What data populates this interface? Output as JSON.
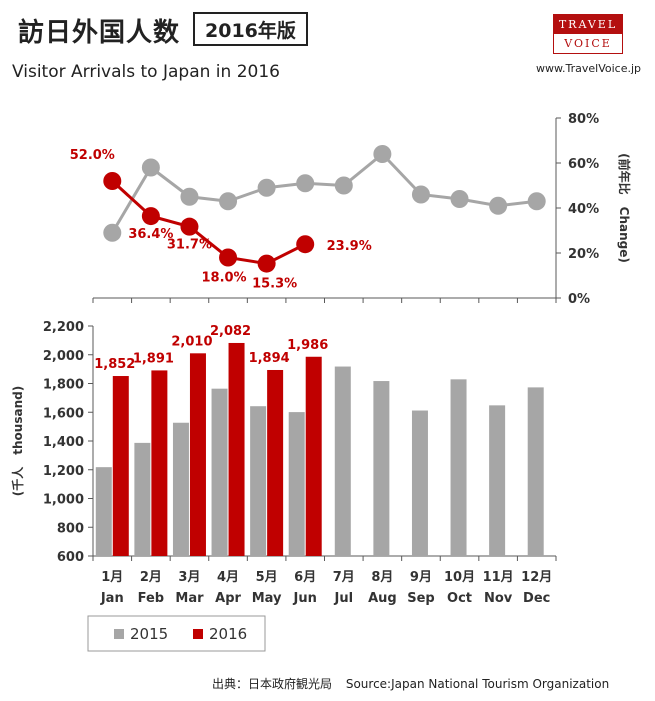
{
  "header": {
    "title_jp": "訪日外国人数",
    "edition": "2016年版",
    "title_en": "Visitor Arrivals to Japan in 2016",
    "logo_top": "TRAVEL",
    "logo_bottom": "VOICE",
    "website": "www.TravelVoice.jp"
  },
  "footer": {
    "source_jp": "出典：日本政府観光局",
    "source_en": "Source:Japan  National Tourism  Organization"
  },
  "colors": {
    "series_2015": "#a6a6a6",
    "series_2016": "#c00000",
    "axis": "#595959"
  },
  "chart_data": [
    {
      "type": "line",
      "ylabel": "(前年比　Change)",
      "ylim": [
        0,
        80
      ],
      "yticks": [
        "0%",
        "20%",
        "40%",
        "60%",
        "80%"
      ],
      "series": [
        {
          "name": "2015",
          "values": [
            29,
            58,
            45,
            43,
            49,
            51,
            50,
            64,
            46,
            44,
            41,
            43
          ]
        },
        {
          "name": "2016",
          "values": [
            52.0,
            36.4,
            31.7,
            18.0,
            15.3,
            23.9
          ],
          "labels": [
            "52.0%",
            "36.4%",
            "31.7%",
            "18.0%",
            "15.3%",
            "23.9%"
          ]
        }
      ]
    },
    {
      "type": "bar",
      "ylabel": "(千人　thousand)",
      "ylim": [
        600,
        2200
      ],
      "yticks": [
        "600",
        "800",
        "1,000",
        "1,200",
        "1,400",
        "1,600",
        "1,800",
        "2,000",
        "2,200"
      ],
      "categories_jp": [
        "1月",
        "2月",
        "3月",
        "4月",
        "5月",
        "6月",
        "7月",
        "8月",
        "9月",
        "10月",
        "11月",
        "12月"
      ],
      "categories_en": [
        "Jan",
        "Feb",
        "Mar",
        "Apr",
        "May",
        "Jun",
        "Jul",
        "Aug",
        "Sep",
        "Oct",
        "Nov",
        "Dec"
      ],
      "series": [
        {
          "name": "2015",
          "values": [
            1218,
            1387,
            1527,
            1764,
            1642,
            1601,
            1918,
            1817,
            1612,
            1829,
            1648,
            1773
          ]
        },
        {
          "name": "2016",
          "values": [
            1852,
            1891,
            2010,
            2082,
            1894,
            1986
          ],
          "labels": [
            "1,852",
            "1,891",
            "2,010",
            "2,082",
            "1,894",
            "1,986"
          ]
        }
      ],
      "legend": [
        "2015",
        "2016"
      ],
      "legend_position": "bottom-left"
    }
  ]
}
